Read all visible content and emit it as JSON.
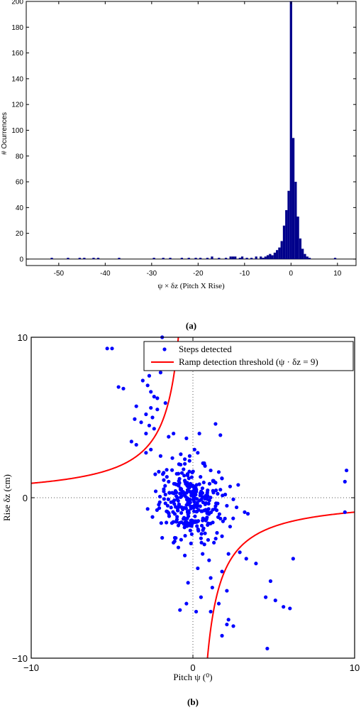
{
  "panel_a": {
    "caption": "(a)",
    "colors": {
      "bars": "#00008b"
    },
    "chart_data": {
      "type": "bar",
      "xlabel": "ψ × δz (Pitch X Rise)",
      "ylabel": "# Ocurrences",
      "xlim": [
        -57,
        14
      ],
      "ylim": [
        -5,
        200
      ],
      "xticks": [
        -50,
        -40,
        -30,
        -20,
        -10,
        0,
        10
      ],
      "yticks": [
        0,
        20,
        40,
        60,
        80,
        100,
        120,
        140,
        160,
        180,
        200
      ],
      "bin_width": 0.5,
      "bins": [
        [
          -51.5,
          1
        ],
        [
          -48,
          1
        ],
        [
          -45.5,
          1
        ],
        [
          -44.5,
          1
        ],
        [
          -42.5,
          1
        ],
        [
          -41.5,
          1
        ],
        [
          -37,
          1
        ],
        [
          -29.5,
          1
        ],
        [
          -27.5,
          1
        ],
        [
          -26,
          1
        ],
        [
          -23.5,
          1
        ],
        [
          -22,
          1
        ],
        [
          -20.5,
          1
        ],
        [
          -19.5,
          1
        ],
        [
          -18,
          1
        ],
        [
          -17,
          2
        ],
        [
          -15.5,
          1
        ],
        [
          -14,
          1
        ],
        [
          -13,
          2
        ],
        [
          -12.5,
          2
        ],
        [
          -12,
          2
        ],
        [
          -11,
          1
        ],
        [
          -10.5,
          2
        ],
        [
          -9.5,
          1
        ],
        [
          -8.5,
          1
        ],
        [
          -7.5,
          2
        ],
        [
          -6.5,
          2
        ],
        [
          -6,
          1
        ],
        [
          -5.5,
          2
        ],
        [
          -5,
          3
        ],
        [
          -4.5,
          4
        ],
        [
          -4,
          3
        ],
        [
          -3.5,
          5
        ],
        [
          -3,
          7
        ],
        [
          -2.5,
          9
        ],
        [
          -2,
          14
        ],
        [
          -1.5,
          26
        ],
        [
          -1,
          38
        ],
        [
          -0.5,
          53
        ],
        [
          0,
          200
        ],
        [
          0.5,
          94
        ],
        [
          1,
          60
        ],
        [
          1.5,
          33
        ],
        [
          2,
          16
        ],
        [
          2.5,
          8
        ],
        [
          3,
          4
        ],
        [
          3.5,
          2
        ],
        [
          4,
          1
        ],
        [
          9.5,
          1
        ]
      ]
    }
  },
  "panel_b": {
    "caption": "(b)",
    "colors": {
      "points": "#0000ff",
      "threshold": "#ff0000"
    },
    "chart_data": {
      "type": "scatter",
      "xlabel": "Pitch ψ (⁰)",
      "ylabel": "Rise δz (cm)",
      "xlim": [
        -10,
        10
      ],
      "ylim": [
        -10,
        10
      ],
      "xticks": [
        -10,
        0,
        10
      ],
      "yticks": [
        -10,
        0,
        10
      ],
      "legend_position": "top-right",
      "series": [
        {
          "name": "Steps detected",
          "points": [
            [
              -5.3,
              9.3
            ],
            [
              -5.0,
              9.3
            ],
            [
              -1.9,
              10.0
            ],
            [
              -1.6,
              9.5
            ],
            [
              -2.8,
              8.5
            ],
            [
              -2.3,
              8.2
            ],
            [
              -2.0,
              7.8
            ],
            [
              -2.7,
              7.6
            ],
            [
              -3.1,
              7.3
            ],
            [
              -2.8,
              7.0
            ],
            [
              -4.6,
              6.9
            ],
            [
              -4.3,
              6.8
            ],
            [
              -2.6,
              6.6
            ],
            [
              -2.4,
              6.3
            ],
            [
              -2.2,
              6.2
            ],
            [
              -3.5,
              5.7
            ],
            [
              -2.6,
              5.6
            ],
            [
              -1.7,
              5.9
            ],
            [
              -2.2,
              5.5
            ],
            [
              -2.9,
              5.2
            ],
            [
              -2.5,
              5.0
            ],
            [
              -3.6,
              4.9
            ],
            [
              -3.2,
              4.7
            ],
            [
              -2.7,
              4.5
            ],
            [
              -2.4,
              4.3
            ],
            [
              -2.9,
              4.0
            ],
            [
              -3.8,
              3.5
            ],
            [
              -3.5,
              3.3
            ],
            [
              -2.6,
              3.0
            ],
            [
              -2.9,
              2.8
            ],
            [
              -2.0,
              2.6
            ],
            [
              -1.5,
              3.8
            ],
            [
              -1.2,
              4.0
            ],
            [
              -0.4,
              3.7
            ],
            [
              0.4,
              4.0
            ],
            [
              1.4,
              4.6
            ],
            [
              1.7,
              3.9
            ],
            [
              0.1,
              3.0
            ],
            [
              0.3,
              2.8
            ],
            [
              -0.2,
              2.6
            ],
            [
              -0.5,
              2.4
            ],
            [
              0.7,
              2.1
            ],
            [
              1.1,
              1.7
            ],
            [
              1.6,
              1.6
            ],
            [
              -0.9,
              1.5
            ],
            [
              1.8,
              1.2
            ],
            [
              -1.8,
              1.1
            ],
            [
              -1.5,
              1.0
            ],
            [
              2.3,
              0.7
            ],
            [
              2.8,
              0.8
            ],
            [
              1.7,
              0.5
            ],
            [
              2.0,
              0.2
            ],
            [
              -2.3,
              0.4
            ],
            [
              -1.7,
              0.2
            ],
            [
              2.5,
              -0.1
            ],
            [
              2.1,
              -0.5
            ],
            [
              2.7,
              -0.6
            ],
            [
              3.2,
              -0.9
            ],
            [
              3.4,
              -1.0
            ],
            [
              1.7,
              -1.3
            ],
            [
              2.3,
              -1.8
            ],
            [
              1.8,
              -2.4
            ],
            [
              1.3,
              -2.8
            ],
            [
              -1.9,
              -2.5
            ],
            [
              -1.2,
              -2.8
            ],
            [
              -0.9,
              -3.1
            ],
            [
              0.6,
              -3.5
            ],
            [
              -0.5,
              -3.6
            ],
            [
              1.0,
              -3.9
            ],
            [
              2.2,
              -3.5
            ],
            [
              2.9,
              -3.4
            ],
            [
              0.3,
              -4.4
            ],
            [
              1.8,
              -4.6
            ],
            [
              1.1,
              -5.0
            ],
            [
              -0.3,
              -5.3
            ],
            [
              1.2,
              -5.6
            ],
            [
              2.1,
              -5.8
            ],
            [
              0.5,
              -6.2
            ],
            [
              1.6,
              -6.6
            ],
            [
              -0.4,
              -6.6
            ],
            [
              -0.8,
              -7.0
            ],
            [
              0.2,
              -7.1
            ],
            [
              1.1,
              -7.1
            ],
            [
              2.2,
              -7.6
            ],
            [
              2.1,
              -7.9
            ],
            [
              4.5,
              -6.2
            ],
            [
              5.1,
              -6.4
            ],
            [
              4.8,
              -5.2
            ],
            [
              5.6,
              -6.8
            ],
            [
              6.0,
              -6.9
            ],
            [
              6.2,
              -3.8
            ],
            [
              3.3,
              -3.8
            ],
            [
              3.9,
              -4.1
            ],
            [
              4.6,
              -9.4
            ],
            [
              2.5,
              -8.0
            ],
            [
              1.8,
              -8.6
            ],
            [
              9.5,
              1.7
            ],
            [
              9.4,
              1.0
            ],
            [
              9.4,
              -0.9
            ],
            [
              -2.8,
              -0.7
            ],
            [
              -2.5,
              -1.2
            ]
          ]
        },
        {
          "name": "Ramp detection threshold (ψ · δz = 9)",
          "product": 9
        }
      ]
    }
  }
}
